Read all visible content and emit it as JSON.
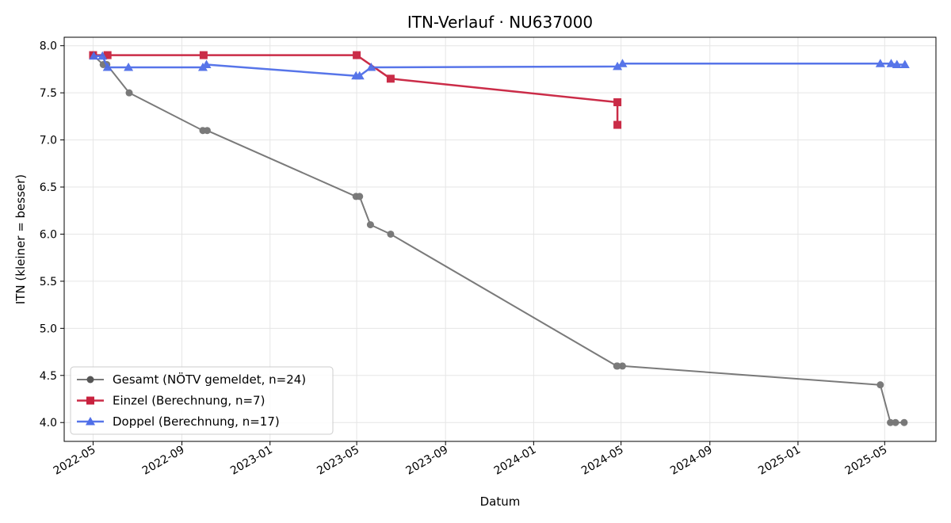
{
  "chart_data": {
    "type": "line",
    "title": "ITN-Verlauf · NU637000",
    "xlabel": "Datum",
    "ylabel": "ITN  (kleiner = besser)",
    "x_axis_type": "date",
    "xlim": [
      "2022-03-22",
      "2025-07-11"
    ],
    "ylim": [
      3.8,
      8.09
    ],
    "x_ticks": [
      "2022-05-01",
      "2022-09-01",
      "2023-01-01",
      "2023-05-01",
      "2023-09-01",
      "2024-01-01",
      "2024-05-01",
      "2024-09-01",
      "2025-01-01",
      "2025-05-01"
    ],
    "x_tick_labels": [
      "2022-05",
      "2022-09",
      "2023-01",
      "2023-05",
      "2023-09",
      "2024-01",
      "2024-05",
      "2024-09",
      "2025-01",
      "2025-05"
    ],
    "y_ticks": [
      4.0,
      4.5,
      5.0,
      5.5,
      6.0,
      6.5,
      7.0,
      7.5,
      8.0
    ],
    "y_tick_labels": [
      "4.0",
      "4.5",
      "5.0",
      "5.5",
      "6.0",
      "6.5",
      "7.0",
      "7.5",
      "8.0"
    ],
    "grid": true,
    "legend_position": "lower-left",
    "series": [
      {
        "name": "Gesamt (NÖTV gemeldet, n=24)",
        "color": "#555555",
        "marker": "circle",
        "points": [
          {
            "x": "2022-05-01",
            "y": 7.9
          },
          {
            "x": "2022-05-15",
            "y": 7.8
          },
          {
            "x": "2022-05-20",
            "y": 7.8
          },
          {
            "x": "2022-06-20",
            "y": 7.5
          },
          {
            "x": "2022-09-30",
            "y": 7.1
          },
          {
            "x": "2022-10-06",
            "y": 7.1
          },
          {
            "x": "2023-04-30",
            "y": 6.4
          },
          {
            "x": "2023-05-05",
            "y": 6.4
          },
          {
            "x": "2023-05-20",
            "y": 6.1
          },
          {
            "x": "2023-06-17",
            "y": 6.0
          },
          {
            "x": "2024-04-25",
            "y": 4.6
          },
          {
            "x": "2024-04-26",
            "y": 4.6
          },
          {
            "x": "2024-05-03",
            "y": 4.6
          },
          {
            "x": "2025-04-25",
            "y": 4.4
          },
          {
            "x": "2025-05-09",
            "y": 4.0
          },
          {
            "x": "2025-05-16",
            "y": 4.0
          },
          {
            "x": "2025-05-28",
            "y": 4.0
          }
        ]
      },
      {
        "name": "Einzel (Berechnung, n=7)",
        "color": "#c8213e",
        "marker": "square",
        "points": [
          {
            "x": "2022-05-01",
            "y": 7.9
          },
          {
            "x": "2022-05-21",
            "y": 7.9
          },
          {
            "x": "2022-10-01",
            "y": 7.9
          },
          {
            "x": "2023-05-01",
            "y": 7.9
          },
          {
            "x": "2023-06-17",
            "y": 7.65
          },
          {
            "x": "2024-04-26",
            "y": 7.4
          },
          {
            "x": "2024-04-26",
            "y": 7.16
          }
        ]
      },
      {
        "name": "Doppel (Berechnung, n=17)",
        "color": "#4f6ee8",
        "marker": "triangle",
        "points": [
          {
            "x": "2022-05-02",
            "y": 7.89
          },
          {
            "x": "2022-05-14",
            "y": 7.89
          },
          {
            "x": "2022-05-21",
            "y": 7.77
          },
          {
            "x": "2022-06-19",
            "y": 7.77
          },
          {
            "x": "2022-09-30",
            "y": 7.77
          },
          {
            "x": "2022-10-05",
            "y": 7.8
          },
          {
            "x": "2023-04-30",
            "y": 7.68
          },
          {
            "x": "2023-05-05",
            "y": 7.68
          },
          {
            "x": "2023-05-21",
            "y": 7.77
          },
          {
            "x": "2024-04-26",
            "y": 7.78
          },
          {
            "x": "2024-05-03",
            "y": 7.81
          },
          {
            "x": "2025-04-25",
            "y": 7.81
          },
          {
            "x": "2025-05-10",
            "y": 7.81
          },
          {
            "x": "2025-05-18",
            "y": 7.8
          },
          {
            "x": "2025-05-29",
            "y": 7.8
          }
        ]
      }
    ]
  }
}
